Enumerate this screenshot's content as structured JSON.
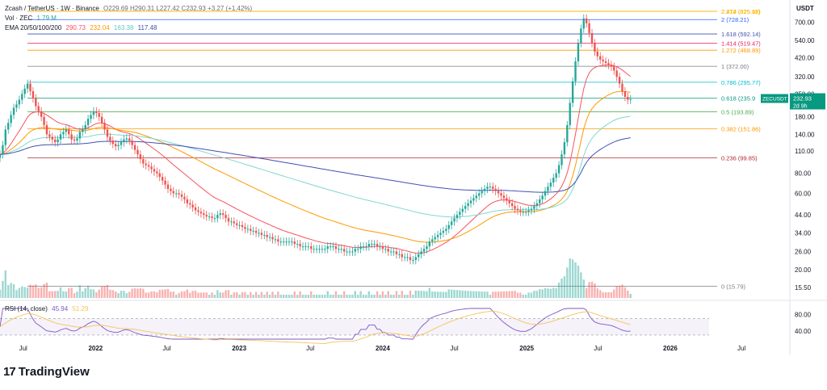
{
  "header": {
    "symbol": "Zcash / TetherUS · 1W · Binance",
    "ohlc": "O229.69 H290.31 L227.42 C232.93 +3.27 (+1.42%)",
    "vol_label": "Vol · ZEC",
    "vol_value": "1.79 M",
    "ema_label": "EMA 20/50/100/200",
    "ema_values": [
      "290.73",
      "232.04",
      "163.38",
      "117.48"
    ],
    "rsi_label": "RSI (14, close)",
    "rsi_values": [
      "45.94",
      "51.29"
    ],
    "currency": "USDT",
    "logo_text": "TradingView"
  },
  "colors": {
    "up": "#26a69a",
    "down": "#ef5350",
    "ema20": "#f7525f",
    "ema50": "#ff9800",
    "ema100": "#7fd8cf",
    "ema200": "#3f51b5",
    "rsi": "#7e57c2",
    "rsi_ma": "#f6c356"
  },
  "chart_data": [
    {
      "type": "candlestick",
      "title": "Zcash / TetherUS · 1W · Binance",
      "y_scale": "log",
      "ylim": [
        13.5,
        820
      ],
      "y_ticks": [
        "700.00",
        "540.00",
        "420.00",
        "320.00",
        "250.00",
        "180.00",
        "140.00",
        "110.00",
        "80.00",
        "60.00",
        "44.00",
        "34.00",
        "26.00",
        "20.00",
        "15.50"
      ],
      "x_ticks": [
        "Jul",
        "2022",
        "Jul",
        "2023",
        "Jul",
        "2024",
        "Jul",
        "2025",
        "Jul",
        "2026",
        "Jul"
      ],
      "x_tick_dates": [
        "2021-07-01",
        "2022-01-01",
        "2022-07-01",
        "2023-01-01",
        "2023-07-01",
        "2024-01-01",
        "2024-07-01",
        "2025-01-01",
        "2025-07-01",
        "2026-01-01",
        "2026-07-01"
      ],
      "fib_levels": [
        {
          "label": "2.414 (875.69)",
          "value": 875.69,
          "color": "#f7b500"
        },
        {
          "label": "2.272 (825.11)",
          "value": 825.11,
          "color": "#f7b500"
        },
        {
          "label": "2 (728.21)",
          "value": 728.21,
          "color": "#2962ff"
        },
        {
          "label": "1.618 (592.14)",
          "value": 592.14,
          "color": "#3f51b5"
        },
        {
          "label": "1.414 (519.47)",
          "value": 519.47,
          "color": "#e91e63"
        },
        {
          "label": "1.272 (468.89)",
          "value": 468.89,
          "color": "#ff9800"
        },
        {
          "label": "1 (372.00)",
          "value": 372.0,
          "color": "#787b86"
        },
        {
          "label": "0.786 (295.77)",
          "value": 295.77,
          "color": "#00bcd4"
        },
        {
          "label": "0.618 (235.9",
          "value": 235.9,
          "color": "#089981"
        },
        {
          "label": "0.5 (193.89)",
          "value": 193.89,
          "color": "#4caf50"
        },
        {
          "label": "0.382 (151.86)",
          "value": 151.86,
          "color": "#ff9800"
        },
        {
          "label": "0.236 (99.85)",
          "value": 99.85,
          "color": "#b22833"
        },
        {
          "label": "0 (15.79)",
          "value": 15.79,
          "color": "#787b86"
        }
      ],
      "last_price_tag": {
        "symbol": "ZECUSDT",
        "price": "232.93",
        "countdown": "2d 9h"
      },
      "ohlc_weekly_approx": {
        "start": "2021-05-03",
        "interval_days": 7,
        "close": [
          105,
          120,
          150,
          165,
          185,
          205,
          215,
          230,
          250,
          270,
          290,
          260,
          235,
          210,
          195,
          180,
          160,
          140,
          135,
          130,
          125,
          130,
          140,
          145,
          150,
          140,
          130,
          128,
          132,
          145,
          150,
          160,
          175,
          185,
          195,
          190,
          180,
          165,
          150,
          135,
          128,
          122,
          118,
          120,
          125,
          130,
          132,
          128,
          120,
          112,
          105,
          98,
          92,
          90,
          88,
          85,
          82,
          80,
          76,
          72,
          68,
          64,
          62,
          60,
          60,
          59,
          57,
          55,
          52,
          51,
          49,
          47,
          46,
          45,
          44,
          43,
          43,
          42,
          42,
          44,
          45,
          44,
          42,
          40,
          40,
          39,
          38,
          38,
          37,
          36,
          36,
          35,
          35,
          34,
          34,
          33,
          33,
          32,
          32,
          31,
          31,
          30,
          30,
          30,
          30,
          30,
          30,
          29,
          29,
          28,
          28,
          28,
          28,
          27,
          27,
          27,
          27,
          27,
          27,
          28,
          28,
          28,
          27,
          27,
          27,
          26,
          26,
          26,
          26,
          27,
          27,
          28,
          28,
          28,
          29,
          29,
          29,
          28,
          28,
          27,
          27,
          26,
          26,
          26,
          25,
          25,
          24,
          24,
          24,
          23,
          23,
          24,
          25,
          26,
          27,
          28,
          30,
          31,
          32,
          33,
          34,
          35,
          36,
          38,
          40,
          42,
          44,
          46,
          48,
          50,
          52,
          54,
          56,
          58,
          60,
          62,
          64,
          66,
          66,
          64,
          62,
          60,
          58,
          56,
          54,
          52,
          50,
          48,
          47,
          46,
          46,
          46,
          47,
          48,
          50,
          52,
          55,
          58,
          62,
          66,
          70,
          75,
          80,
          90,
          105,
          125,
          160,
          220,
          300,
          400,
          520,
          640,
          740,
          690,
          600,
          520,
          460,
          430,
          410,
          400,
          390,
          380,
          370,
          350,
          320,
          290,
          260,
          240,
          230,
          232
        ]
      }
    },
    {
      "type": "line",
      "title": "RSI (14, close)",
      "ylim": [
        20,
        95
      ],
      "y_ticks": [
        "80.00",
        "40.00"
      ],
      "series": [
        {
          "name": "RSI",
          "values": [
            45.94
          ]
        },
        {
          "name": "RSI MA",
          "values": [
            51.29
          ]
        }
      ]
    }
  ]
}
